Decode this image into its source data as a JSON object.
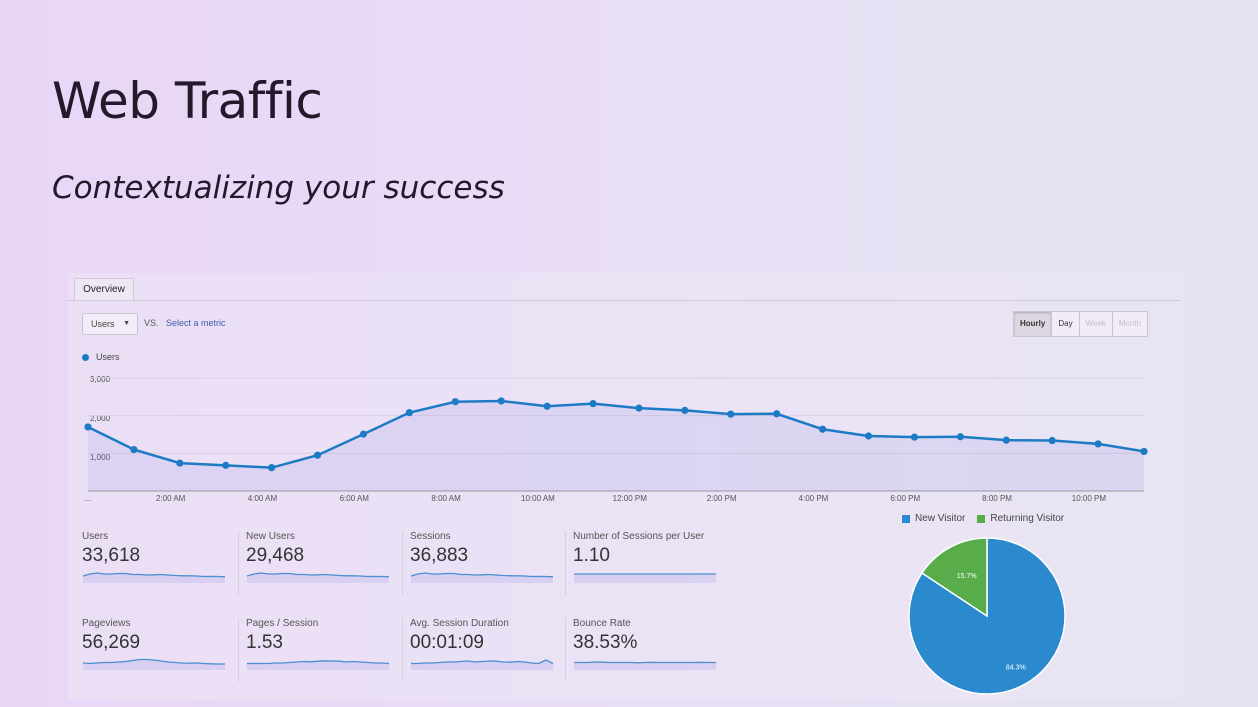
{
  "slide": {
    "title": "Web Traffic",
    "subtitle": "Contextualizing your success"
  },
  "tabs": [
    {
      "label": "Overview"
    }
  ],
  "controls": {
    "metric_select": {
      "value": "Users",
      "caret_icon": "chevron-down-icon"
    },
    "vs_label": "VS.",
    "select_metric_link": "Select a metric",
    "ranges": [
      {
        "label": "Hourly",
        "state": "active"
      },
      {
        "label": "Day",
        "state": "normal"
      },
      {
        "label": "Week",
        "state": "disabled"
      },
      {
        "label": "Month",
        "state": "disabled"
      }
    ]
  },
  "chart_data": [
    {
      "type": "area",
      "series": [
        {
          "name": "Users",
          "color": "#1d7bc6",
          "values": [
            1700,
            1100,
            740,
            680,
            620,
            950,
            1510,
            2080,
            2370,
            2390,
            2250,
            2320,
            2200,
            2140,
            2040,
            2050,
            1640,
            1460,
            1430,
            1440,
            1350,
            1340,
            1250,
            1050
          ]
        }
      ],
      "x_labels": [
        "...",
        "2:00 AM",
        "4:00 AM",
        "6:00 AM",
        "8:00 AM",
        "10:00 AM",
        "12:00 PM",
        "2:00 PM",
        "4:00 PM",
        "6:00 PM",
        "8:00 PM",
        "10:00 PM"
      ],
      "y_ticks": [
        1000,
        2000,
        3000
      ],
      "y_tick_labels": [
        "1,000",
        "2,000",
        "3,000"
      ],
      "ylim": [
        0,
        3000
      ],
      "grid": true,
      "legend": "top-left"
    },
    {
      "type": "pie",
      "legend": "top",
      "slices": [
        {
          "name": "New Visitor",
          "value": 84.3,
          "label": "84.3%",
          "color": "#2a8acd"
        },
        {
          "name": "Returning Visitor",
          "value": 15.7,
          "label": "15.7%",
          "color": "#58ad4a"
        }
      ]
    }
  ],
  "scorecards": [
    {
      "label": "Users",
      "value": "33,618",
      "spark": [
        7,
        5,
        4,
        5,
        5,
        4.5,
        4.5,
        5.5,
        5.5,
        6,
        5.8,
        5.5,
        6,
        6.5,
        6.8,
        6.8,
        7,
        7.5,
        7.4,
        7.5,
        7.8
      ]
    },
    {
      "label": "New Users",
      "value": "29,468",
      "spark": [
        7,
        5,
        4,
        5,
        5,
        4.5,
        4.5,
        5.5,
        5.5,
        6,
        5.8,
        5.5,
        6,
        6.5,
        6.8,
        6.8,
        7,
        7.5,
        7.4,
        7.5,
        7.8
      ]
    },
    {
      "label": "Sessions",
      "value": "36,883",
      "spark": [
        7,
        5,
        4,
        5,
        5,
        4.5,
        4.5,
        5.5,
        5.5,
        6,
        5.8,
        5.5,
        6,
        6.5,
        6.8,
        6.8,
        7,
        7.5,
        7.4,
        7.5,
        7.8
      ]
    },
    {
      "label": "Number of Sessions per User",
      "value": "1.10",
      "spark": [
        5,
        5,
        5,
        5,
        5,
        5,
        5,
        5,
        5,
        5,
        5,
        5,
        5,
        5,
        5,
        5,
        5,
        5,
        5,
        5,
        5
      ]
    },
    {
      "label": "Pageviews",
      "value": "56,269",
      "spark": [
        7,
        7.5,
        7,
        6.5,
        6.5,
        6,
        5.5,
        4.5,
        3.5,
        3.5,
        4,
        5,
        6,
        6.5,
        7,
        7.2,
        7,
        7.5,
        7.8,
        8,
        8
      ]
    },
    {
      "label": "Pages / Session",
      "value": "1.53",
      "spark": [
        7.5,
        7.5,
        7.5,
        7.5,
        7,
        7,
        6.5,
        6,
        5.5,
        5.8,
        5.2,
        4.8,
        5,
        5.2,
        6,
        5.5,
        6,
        6.5,
        7,
        7,
        7.5
      ]
    },
    {
      "label": "Avg. Session Duration",
      "value": "00:01:09",
      "spark": [
        7.5,
        7.5,
        7,
        7,
        6.5,
        6,
        6,
        5.5,
        5,
        6,
        5.5,
        5,
        5.2,
        6,
        6.2,
        5.5,
        6,
        7,
        7.5,
        4,
        7.5
      ]
    },
    {
      "label": "Bounce Rate",
      "value": "38.53%",
      "spark": [
        6.5,
        6.5,
        6.5,
        6,
        6.2,
        6.5,
        6.5,
        6.5,
        6.5,
        6.8,
        6.5,
        6.3,
        6.5,
        6.5,
        6.5,
        6.5,
        6.5,
        6.5,
        6.3,
        6.5,
        6.5
      ]
    }
  ]
}
